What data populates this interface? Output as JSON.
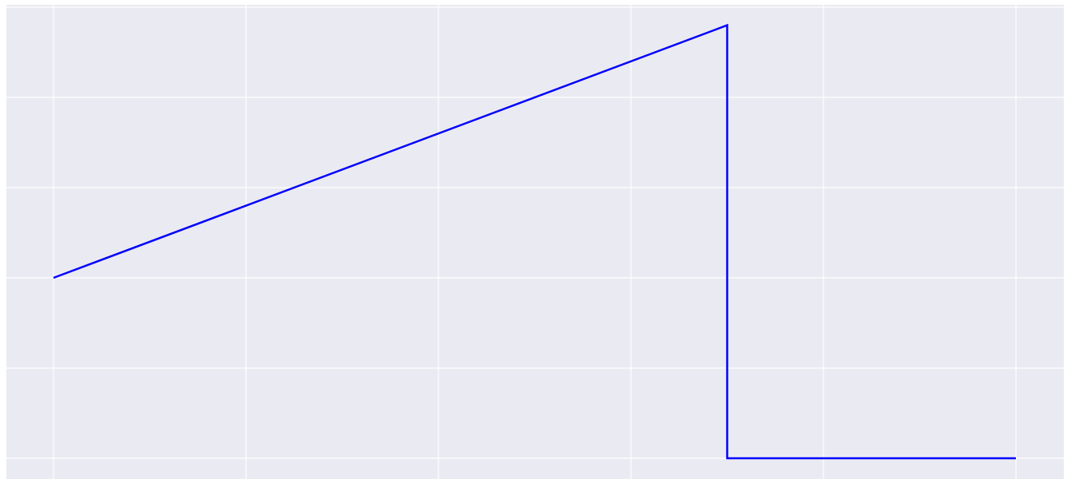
{
  "chart_data": {
    "type": "line",
    "title": "",
    "xlabel": "",
    "ylabel": "",
    "grid": true,
    "xlim": [
      0,
      5.25
    ],
    "ylim": [
      -0.2,
      4.8
    ],
    "x_gridlines": [
      0,
      1,
      2,
      3,
      4,
      5
    ],
    "y_gridlines": [
      0,
      1,
      2,
      3,
      4,
      5
    ],
    "series": [
      {
        "color": "#0000ff",
        "x": [
          0,
          3.5,
          3.5,
          5
        ],
        "y": [
          2,
          4.8,
          0,
          0
        ]
      }
    ],
    "colors": {
      "plot_background": "#eaeaf2",
      "gridline": "#ffffff",
      "line": "#0000ff"
    }
  }
}
